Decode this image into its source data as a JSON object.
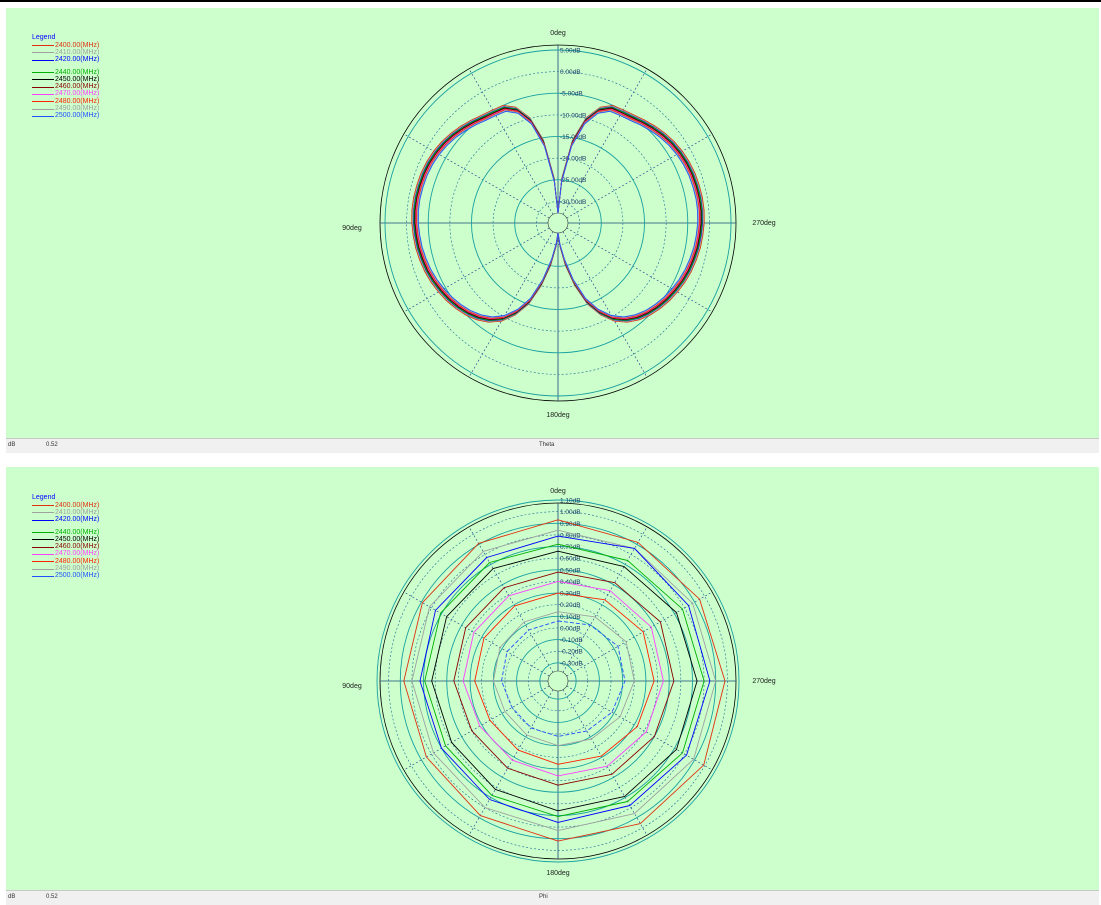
{
  "legend": {
    "title": "Legend",
    "group1": [
      {
        "label": "2400.00(MHz)",
        "color": "#e03010"
      },
      {
        "label": "2410.00(MHz)",
        "color": "#a0a0a0"
      },
      {
        "label": "2420.00(MHz)",
        "color": "#0000ff"
      }
    ],
    "group2": [
      {
        "label": "2440.00(MHz)",
        "color": "#00b000"
      },
      {
        "label": "2450.00(MHz)",
        "color": "#000000"
      },
      {
        "label": "2460.00(MHz)",
        "color": "#8b0000"
      },
      {
        "label": "2470.00(MHz)",
        "color": "#ff40ff"
      },
      {
        "label": "2480.00(MHz)",
        "color": "#ff2000"
      },
      {
        "label": "2490.00(MHz)",
        "color": "#a0a0a0"
      },
      {
        "label": "2500.00(MHz)",
        "color": "#2050ff"
      }
    ]
  },
  "top_plot": {
    "angle_labels": {
      "top": "0deg",
      "left": "90deg",
      "right": "270deg",
      "bottom": "180deg"
    },
    "status": {
      "unit": "dB",
      "value": "0.52",
      "axis": "Theta"
    }
  },
  "bottom_plot": {
    "angle_labels": {
      "top": "0deg",
      "left": "90deg",
      "right": "270deg",
      "bottom": "180deg"
    },
    "status": {
      "unit": "dB",
      "value": "0.52",
      "axis": "Phi"
    }
  },
  "chart_data": [
    {
      "type": "line",
      "subtype": "polar",
      "angle_axis": "Theta",
      "angle_ticks_deg": [
        0,
        90,
        180,
        270
      ],
      "radial_ticks": [
        "5.00dB",
        "0.00dB",
        "-5.00dB",
        "-10.00dB",
        "-15.00dB",
        "-20.00dB",
        "-25.00dB",
        "-30.00dB"
      ],
      "radial_range_db": [
        -32.7,
        5.0
      ],
      "grid": true,
      "legend_position": "top-left",
      "theta_deg": [
        0,
        5,
        10,
        15,
        20,
        25,
        30,
        35,
        40,
        45,
        50,
        55,
        60,
        65,
        70,
        75,
        80,
        85,
        90,
        95,
        100,
        105,
        110,
        115,
        120,
        125,
        130,
        135,
        140,
        145,
        150,
        155,
        160,
        165,
        170,
        175,
        180
      ],
      "series": [
        {
          "name": "2400.00(MHz)",
          "values": [
            -32.7,
            -24.5,
            -15.5,
            -9.8,
            -6.5,
            -5.0,
            -4.8,
            -4.5,
            -3.9,
            -3.3,
            -2.7,
            -2.2,
            -1.8,
            -1.5,
            -1.3,
            -1.2,
            -1.1,
            -1.1,
            -1.2,
            -1.4,
            -1.6,
            -1.9,
            -2.2,
            -2.6,
            -3.1,
            -3.6,
            -4.2,
            -4.9,
            -5.8,
            -7.0,
            -8.8,
            -11.5,
            -15.0,
            -20.0,
            -25.0,
            -29.5,
            -32.7
          ]
        },
        {
          "name": "2410.00(MHz)",
          "values": [
            -32.7,
            -24.7,
            -15.7,
            -10.0,
            -6.7,
            -5.2,
            -5.0,
            -4.7,
            -4.1,
            -3.5,
            -2.9,
            -2.4,
            -2.0,
            -1.7,
            -1.5,
            -1.4,
            -1.3,
            -1.3,
            -1.4,
            -1.6,
            -1.8,
            -2.1,
            -2.4,
            -2.8,
            -3.3,
            -3.8,
            -4.4,
            -5.1,
            -6.0,
            -7.2,
            -9.0,
            -11.7,
            -15.2,
            -20.2,
            -25.2,
            -29.6,
            -32.7
          ]
        },
        {
          "name": "2420.00(MHz)",
          "values": [
            -32.7,
            -24.8,
            -15.9,
            -10.2,
            -6.9,
            -5.4,
            -5.2,
            -4.9,
            -4.3,
            -3.7,
            -3.1,
            -2.6,
            -2.2,
            -1.9,
            -1.7,
            -1.6,
            -1.5,
            -1.5,
            -1.6,
            -1.8,
            -2.0,
            -2.3,
            -2.6,
            -3.0,
            -3.5,
            -4.0,
            -4.6,
            -5.3,
            -6.2,
            -7.4,
            -9.2,
            -11.9,
            -15.4,
            -20.4,
            -25.4,
            -29.7,
            -32.7
          ]
        },
        {
          "name": "2440.00(MHz)",
          "values": [
            -32.7,
            -24.9,
            -16.0,
            -10.3,
            -7.0,
            -5.5,
            -5.3,
            -5.0,
            -4.4,
            -3.8,
            -3.2,
            -2.7,
            -2.3,
            -2.0,
            -1.8,
            -1.7,
            -1.6,
            -1.6,
            -1.7,
            -1.9,
            -2.1,
            -2.4,
            -2.7,
            -3.1,
            -3.6,
            -4.1,
            -4.7,
            -5.4,
            -6.3,
            -7.5,
            -9.3,
            -12.0,
            -15.5,
            -20.5,
            -25.5,
            -29.8,
            -32.7
          ]
        },
        {
          "name": "2450.00(MHz)",
          "values": [
            -32.7,
            -25.0,
            -16.2,
            -10.5,
            -7.2,
            -5.7,
            -5.5,
            -5.2,
            -4.6,
            -4.0,
            -3.4,
            -2.9,
            -2.5,
            -2.2,
            -2.0,
            -1.9,
            -1.8,
            -1.8,
            -1.9,
            -2.1,
            -2.3,
            -2.6,
            -2.9,
            -3.3,
            -3.8,
            -4.3,
            -4.9,
            -5.6,
            -6.5,
            -7.7,
            -9.5,
            -12.2,
            -15.7,
            -20.7,
            -25.7,
            -29.8,
            -32.7
          ]
        },
        {
          "name": "2460.00(MHz)",
          "values": [
            -32.7,
            -25.1,
            -16.3,
            -10.6,
            -7.3,
            -5.8,
            -5.6,
            -5.3,
            -4.7,
            -4.1,
            -3.5,
            -3.0,
            -2.6,
            -2.3,
            -2.1,
            -2.0,
            -1.9,
            -1.9,
            -2.0,
            -2.2,
            -2.4,
            -2.7,
            -3.0,
            -3.4,
            -3.9,
            -4.4,
            -5.0,
            -5.7,
            -6.6,
            -7.8,
            -9.6,
            -12.3,
            -15.8,
            -20.8,
            -25.8,
            -29.9,
            -32.7
          ]
        },
        {
          "name": "2470.00(MHz)",
          "values": [
            -32.7,
            -25.2,
            -16.5,
            -10.8,
            -7.5,
            -6.0,
            -5.8,
            -5.5,
            -4.9,
            -4.3,
            -3.7,
            -3.2,
            -2.8,
            -2.5,
            -2.3,
            -2.2,
            -2.1,
            -2.1,
            -2.2,
            -2.4,
            -2.6,
            -2.9,
            -3.2,
            -3.6,
            -4.1,
            -4.6,
            -5.2,
            -5.9,
            -6.8,
            -8.0,
            -9.8,
            -12.5,
            -16.0,
            -21.0,
            -26.0,
            -30.0,
            -32.7
          ]
        },
        {
          "name": "2480.00(MHz)",
          "values": [
            -32.7,
            -25.3,
            -16.6,
            -10.9,
            -7.6,
            -6.1,
            -5.9,
            -5.6,
            -5.0,
            -4.4,
            -3.8,
            -3.3,
            -2.9,
            -2.6,
            -2.4,
            -2.3,
            -2.2,
            -2.2,
            -2.3,
            -2.5,
            -2.7,
            -3.0,
            -3.3,
            -3.7,
            -4.2,
            -4.7,
            -5.3,
            -6.0,
            -6.9,
            -8.1,
            -9.9,
            -12.6,
            -16.1,
            -21.1,
            -26.1,
            -30.0,
            -32.7
          ]
        },
        {
          "name": "2490.00(MHz)",
          "values": [
            -32.7,
            -25.4,
            -16.8,
            -11.1,
            -7.8,
            -6.3,
            -6.1,
            -5.8,
            -5.2,
            -4.6,
            -4.0,
            -3.5,
            -3.1,
            -2.8,
            -2.6,
            -2.5,
            -2.4,
            -2.4,
            -2.5,
            -2.7,
            -2.9,
            -3.2,
            -3.5,
            -3.9,
            -4.4,
            -4.9,
            -5.5,
            -6.2,
            -7.1,
            -8.3,
            -10.1,
            -12.8,
            -16.3,
            -21.3,
            -26.3,
            -30.1,
            -32.7
          ]
        },
        {
          "name": "2500.00(MHz)",
          "values": [
            -32.7,
            -25.5,
            -17.0,
            -11.3,
            -8.0,
            -6.5,
            -6.3,
            -6.0,
            -5.4,
            -4.8,
            -4.2,
            -3.7,
            -3.3,
            -3.0,
            -2.8,
            -2.7,
            -2.6,
            -2.6,
            -2.7,
            -2.9,
            -3.1,
            -3.4,
            -3.7,
            -4.1,
            -4.6,
            -5.1,
            -5.7,
            -6.4,
            -7.3,
            -8.5,
            -10.3,
            -13.0,
            -16.5,
            -21.5,
            -26.5,
            -30.2,
            -32.7
          ]
        }
      ]
    },
    {
      "type": "line",
      "subtype": "polar",
      "angle_axis": "Phi",
      "angle_ticks_deg": [
        0,
        90,
        180,
        270
      ],
      "radial_ticks": [
        "1.10dB",
        "1.00dB",
        "0.90dB",
        "0.80dB",
        "0.70dB",
        "0.60dB",
        "0.50dB",
        "0.40dB",
        "0.30dB",
        "0.20dB",
        "0.10dB",
        "0.00dB",
        "-0.10dB",
        "-0.20dB",
        "-0.30dB"
      ],
      "radial_range_db": [
        -0.37,
        1.1
      ],
      "grid": true,
      "legend_position": "top-left",
      "phi_deg": [
        0,
        30,
        60,
        90,
        120,
        150,
        180,
        210,
        240,
        270,
        300,
        330
      ],
      "series": [
        {
          "name": "2400.00(MHz)",
          "values": [
            0.93,
            0.92,
            0.95,
            0.98,
            0.99,
            0.96,
            0.92,
            0.88,
            0.85,
            0.87,
            0.89,
            0.91
          ]
        },
        {
          "name": "2410.00(MHz)",
          "values": [
            0.84,
            0.86,
            0.88,
            0.9,
            0.89,
            0.86,
            0.83,
            0.8,
            0.78,
            0.8,
            0.82,
            0.83
          ]
        },
        {
          "name": "2420.00(MHz)",
          "values": [
            0.79,
            0.86,
            0.84,
            0.85,
            0.82,
            0.78,
            0.76,
            0.72,
            0.7,
            0.73,
            0.76,
            0.77
          ]
        },
        {
          "name": "2440.00(MHz)",
          "values": [
            0.72,
            0.74,
            0.78,
            0.8,
            0.78,
            0.74,
            0.71,
            0.68,
            0.66,
            0.69,
            0.71,
            0.72
          ]
        },
        {
          "name": "2450.00(MHz)",
          "values": [
            0.66,
            0.68,
            0.72,
            0.74,
            0.72,
            0.69,
            0.66,
            0.62,
            0.6,
            0.63,
            0.65,
            0.66
          ]
        },
        {
          "name": "2460.00(MHz)",
          "values": [
            0.48,
            0.52,
            0.56,
            0.54,
            0.5,
            0.47,
            0.44,
            0.41,
            0.4,
            0.44,
            0.46,
            0.47
          ]
        },
        {
          "name": "2470.00(MHz)",
          "values": [
            0.4,
            0.44,
            0.47,
            0.45,
            0.42,
            0.39,
            0.36,
            0.33,
            0.32,
            0.36,
            0.38,
            0.39
          ]
        },
        {
          "name": "2480.00(MHz)",
          "values": [
            0.3,
            0.35,
            0.39,
            0.37,
            0.33,
            0.29,
            0.26,
            0.23,
            0.22,
            0.26,
            0.28,
            0.29
          ]
        },
        {
          "name": "2490.00(MHz)",
          "values": [
            0.14,
            0.18,
            0.22,
            0.2,
            0.16,
            0.12,
            0.1,
            0.08,
            0.07,
            0.1,
            0.12,
            0.13
          ]
        },
        {
          "name": "2500.00(MHz)",
          "values": [
            0.06,
            0.1,
            0.14,
            0.12,
            0.08,
            0.04,
            0.02,
            0.01,
            0.0,
            0.03,
            0.05,
            0.05
          ]
        }
      ]
    }
  ]
}
